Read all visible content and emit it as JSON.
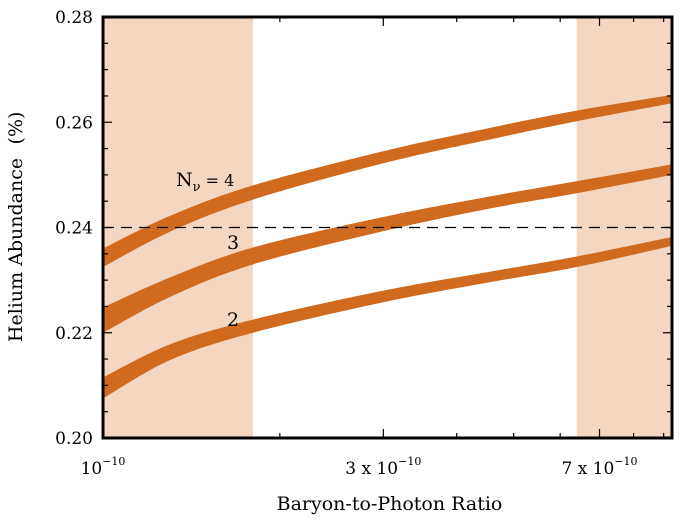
{
  "chart_data": {
    "type": "line",
    "xlabel": "Baryon-to-Photon Ratio",
    "ylabel": "Helium Abundance",
    "ylabel_unit": "(%)",
    "xscale": "log",
    "xlim": [
      1e-10,
      9.3e-10
    ],
    "ylim": [
      0.2,
      0.28
    ],
    "y_ticks": [
      0.2,
      0.22,
      0.24,
      0.26,
      0.28
    ],
    "y_tick_labels": [
      "0.20",
      "0.22",
      "0.24",
      "0.26",
      "0.28"
    ],
    "x_ticks": [
      {
        "value": 1e-10,
        "base": "10",
        "exp": "−10"
      },
      {
        "value": 3e-10,
        "base": "3 x 10",
        "exp": "−10"
      },
      {
        "value": 7e-10,
        "base": "7 x 10",
        "exp": "−10"
      }
    ],
    "reference_line": {
      "y": 0.24,
      "style": "dashed"
    },
    "shaded_regions": [
      {
        "x_from": 1e-10,
        "x_to": 1.8e-10
      },
      {
        "x_from": 6.4e-10,
        "x_to": 9.3e-10
      }
    ],
    "series": [
      {
        "name": "4",
        "x": [
          1e-10,
          1.3e-10,
          1.8e-10,
          3e-10,
          4.5e-10,
          6.4e-10,
          9.3e-10
        ],
        "y_low": [
          0.2325,
          0.2392,
          0.2453,
          0.2522,
          0.2566,
          0.2602,
          0.2636
        ],
        "y_high": [
          0.236,
          0.2422,
          0.248,
          0.2545,
          0.2588,
          0.2622,
          0.2652
        ]
      },
      {
        "name": "3",
        "x": [
          1e-10,
          1.3e-10,
          1.8e-10,
          3e-10,
          4.5e-10,
          6.4e-10,
          9.3e-10
        ],
        "y_low": [
          0.22,
          0.2268,
          0.233,
          0.2393,
          0.2435,
          0.2465,
          0.25
        ],
        "y_high": [
          0.2248,
          0.2305,
          0.2362,
          0.242,
          0.2458,
          0.2488,
          0.252
        ]
      },
      {
        "name": "2",
        "x": [
          1e-10,
          1.3e-10,
          1.8e-10,
          3e-10,
          4.5e-10,
          6.4e-10,
          9.3e-10
        ],
        "y_low": [
          0.2075,
          0.2148,
          0.22,
          0.2258,
          0.2295,
          0.2325,
          0.2365
        ],
        "y_high": [
          0.2115,
          0.2178,
          0.2225,
          0.228,
          0.2315,
          0.2345,
          0.2382
        ]
      }
    ],
    "annotations": {
      "nu4_prefix": "N",
      "nu4_sub": "ν",
      "nu4_eq": " = 4",
      "nu3": "3",
      "nu2": "2"
    },
    "colors": {
      "band": "#d06a1e",
      "shade": "#f5d7c1",
      "frame": "#000000",
      "reference": "#000000"
    }
  }
}
